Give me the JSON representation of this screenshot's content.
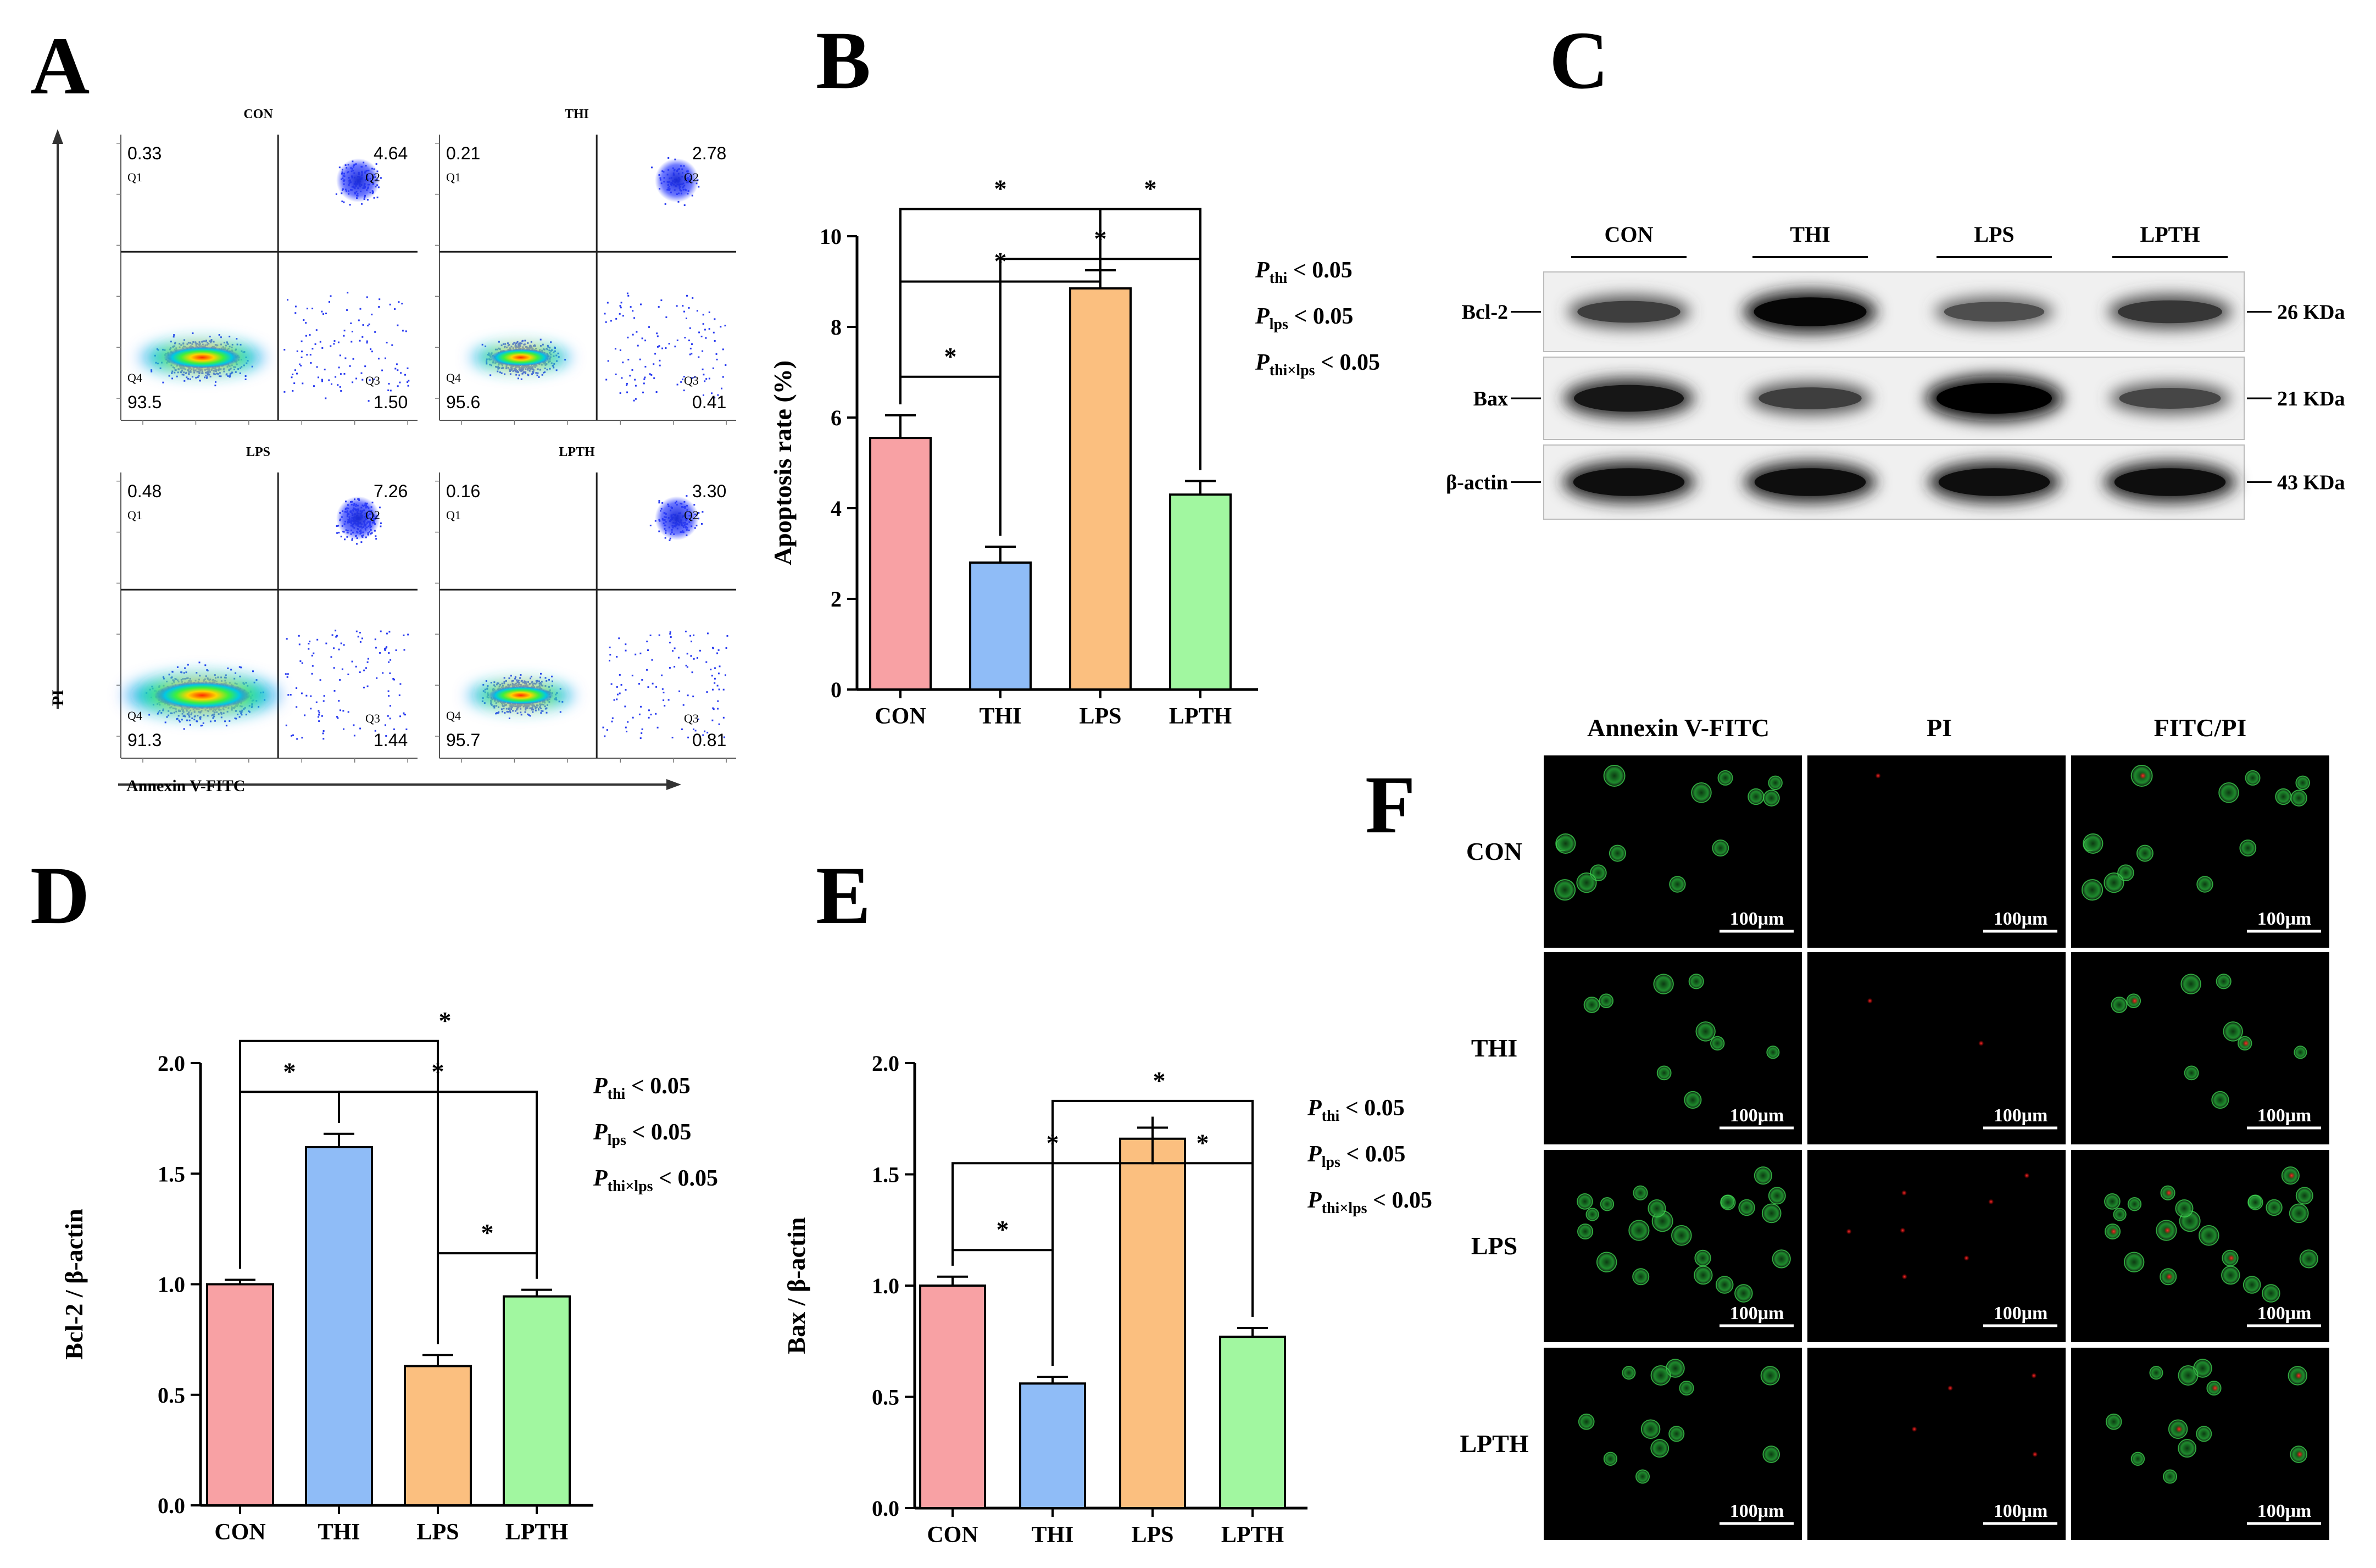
{
  "panel_letters": {
    "a": "A",
    "b": "B",
    "c": "C",
    "d": "D",
    "e": "E",
    "f": "F"
  },
  "groups": [
    "CON",
    "THI",
    "LPS",
    "LPTH"
  ],
  "colors": {
    "CON": "#f8a1a4",
    "THI": "#8fbcf7",
    "LPS": "#fbbf7f",
    "LPTH": "#a1f7a0"
  },
  "flow": {
    "x_label": "Annexin V-FITC",
    "y_label": "PI",
    "quadrant_labels": [
      "Q1",
      "Q2",
      "Q3",
      "Q4"
    ],
    "plots": [
      {
        "title": "CON",
        "q1": "0.33",
        "q2": "4.64",
        "q3": "1.50",
        "q4": "93.5"
      },
      {
        "title": "THI",
        "q1": "0.21",
        "q2": "2.78",
        "q3": "0.41",
        "q4": "95.6"
      },
      {
        "title": "LPS",
        "q1": "0.48",
        "q2": "7.26",
        "q3": "1.44",
        "q4": "91.3"
      },
      {
        "title": "LPTH",
        "q1": "0.16",
        "q2": "3.30",
        "q3": "0.81",
        "q4": "95.7"
      }
    ]
  },
  "chart_data": [
    {
      "panel": "B",
      "type": "bar",
      "categories": [
        "CON",
        "THI",
        "LPS",
        "LPTH"
      ],
      "values": [
        5.55,
        2.8,
        8.85,
        4.3
      ],
      "errors": [
        0.5,
        0.35,
        0.4,
        0.3
      ],
      "ylabel": "Apoptosis rate (%)",
      "ylim": [
        0,
        10
      ],
      "yticks": [
        "0",
        "2",
        "4",
        "6",
        "8",
        "10"
      ],
      "significance": [
        "*",
        "*",
        "*",
        "*",
        "*"
      ],
      "stats": [
        {
          "p": "P",
          "sub": "thi",
          "rest": " < 0.05"
        },
        {
          "p": "P",
          "sub": "lps",
          "rest": " < 0.05"
        },
        {
          "p": "P",
          "sub": "thi×lps",
          "rest": " < 0.05"
        }
      ]
    },
    {
      "panel": "D",
      "type": "bar",
      "categories": [
        "CON",
        "THI",
        "LPS",
        "LPTH"
      ],
      "values": [
        1.0,
        1.62,
        0.63,
        0.945
      ],
      "errors": [
        0.02,
        0.06,
        0.05,
        0.03
      ],
      "ylabel": "Bcl-2 / β-actin",
      "ylim": [
        0,
        2.0
      ],
      "yticks": [
        "0.0",
        "0.5",
        "1.0",
        "1.5",
        "2.0"
      ],
      "significance": [
        "*",
        "*",
        "*",
        "*"
      ],
      "stats": [
        {
          "p": "P",
          "sub": "thi",
          "rest": " < 0.05"
        },
        {
          "p": "P",
          "sub": "lps",
          "rest": " < 0.05"
        },
        {
          "p": "P",
          "sub": "thi×lps",
          "rest": " < 0.05"
        }
      ]
    },
    {
      "panel": "E",
      "type": "bar",
      "categories": [
        "CON",
        "THI",
        "LPS",
        "LPTH"
      ],
      "values": [
        1.0,
        0.56,
        1.66,
        0.77
      ],
      "errors": [
        0.04,
        0.03,
        0.05,
        0.04
      ],
      "ylabel": "Bax / β-actin",
      "ylim": [
        0,
        2.0
      ],
      "yticks": [
        "0.0",
        "0.5",
        "1.0",
        "1.5",
        "2.0"
      ],
      "significance": [
        "*",
        "*",
        "*",
        "*"
      ],
      "stats": [
        {
          "p": "P",
          "sub": "thi",
          "rest": " < 0.05"
        },
        {
          "p": "P",
          "sub": "lps",
          "rest": " < 0.05"
        },
        {
          "p": "P",
          "sub": "thi×lps",
          "rest": " < 0.05"
        }
      ]
    }
  ],
  "western": {
    "lanes": [
      "CON",
      "THI",
      "LPS",
      "LPTH"
    ],
    "rows": [
      {
        "protein": "Bcl-2",
        "size": "26 KDa",
        "intensity": [
          0.55,
          0.9,
          0.45,
          0.6
        ]
      },
      {
        "protein": "Bax",
        "size": "21 KDa",
        "intensity": [
          0.8,
          0.55,
          1.0,
          0.5
        ]
      },
      {
        "protein": "β-actin",
        "size": "43 KDa",
        "intensity": [
          0.85,
          0.85,
          0.85,
          0.85
        ]
      }
    ]
  },
  "microscopy": {
    "columns": [
      "Annexin V-FITC",
      "PI",
      "FITC/PI"
    ],
    "rows": [
      "CON",
      "THI",
      "LPS",
      "LPTH"
    ],
    "scale_bar": "100μm"
  }
}
